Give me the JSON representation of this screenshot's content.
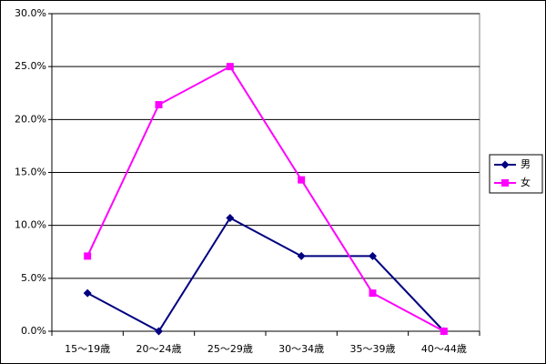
{
  "chart_data": {
    "type": "line",
    "categories": [
      "15～19歳",
      "20～24歳",
      "25～29歳",
      "30～34歳",
      "35～39歳",
      "40～44歳"
    ],
    "series": [
      {
        "name": "男",
        "color": "#000080",
        "marker": "diamond",
        "values": [
          3.6,
          0,
          10.7,
          7.1,
          7.1,
          0
        ]
      },
      {
        "name": "女",
        "color": "#ff00ff",
        "marker": "square",
        "values": [
          7.1,
          21.4,
          25.0,
          14.3,
          3.6,
          0
        ]
      }
    ],
    "ylim": [
      0,
      30
    ],
    "yticks": [
      {
        "value": 0,
        "label": "0.0%"
      },
      {
        "value": 5,
        "label": "5.0%"
      },
      {
        "value": 10,
        "label": "10.0%"
      },
      {
        "value": 15,
        "label": "15.0%"
      },
      {
        "value": 20,
        "label": "20.0%"
      },
      {
        "value": 25,
        "label": "25.0%"
      },
      {
        "value": 30,
        "label": "30.0%"
      }
    ],
    "grid": true,
    "legend": "right"
  }
}
